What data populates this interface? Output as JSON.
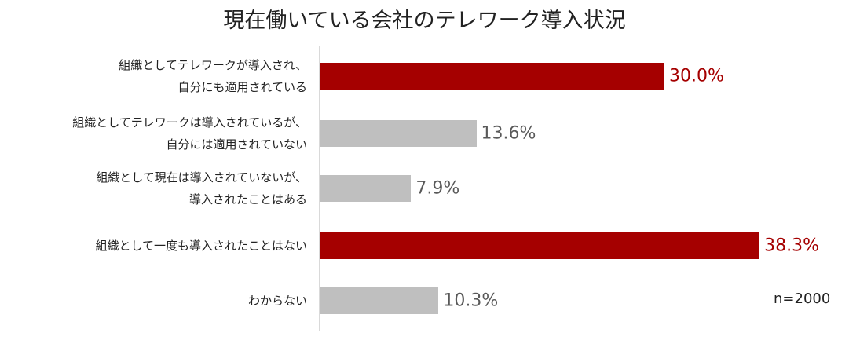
{
  "chart_data": {
    "type": "bar",
    "orientation": "horizontal",
    "title": "現在働いている会社のテレワーク導入状況",
    "categories": [
      "組織としてテレワークが導入され、\n自分にも適用されている",
      "組織としてテレワークは導入されているが、\n自分には適用されていない",
      "組織として現在は導入されていないが、\n導入されたことはある",
      "組織として一度も導入されたことはない",
      "わからない"
    ],
    "values": [
      30.0,
      13.6,
      7.9,
      38.3,
      10.3
    ],
    "value_labels": [
      "30.0%",
      "13.6%",
      "7.9%",
      "38.3%",
      "10.3%"
    ],
    "colors": [
      "#a50000",
      "#bfbfbf",
      "#bfbfbf",
      "#a50000",
      "#bfbfbf"
    ],
    "label_colors": [
      "#a50000",
      "#595959",
      "#595959",
      "#a50000",
      "#595959"
    ],
    "note": "n=2000"
  }
}
